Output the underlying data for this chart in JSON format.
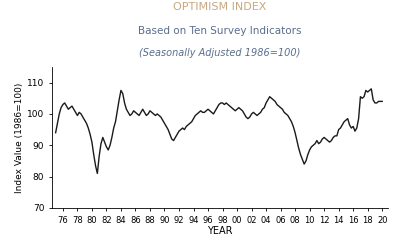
{
  "title1": "OPTIMISM INDEX",
  "title2": "Based on Ten Survey Indicators",
  "title3": "(Seasonally Adjusted 1986=100)",
  "title1_color": "#C8A882",
  "title2_color": "#5A6E8C",
  "title3_color": "#5A6E8C",
  "xlabel": "YEAR",
  "ylabel": "Index Value (1986=100)",
  "xlim": [
    1974.5,
    2020.8
  ],
  "ylim": [
    70,
    115
  ],
  "yticks": [
    70,
    80,
    90,
    100,
    110
  ],
  "xtick_vals": [
    1976,
    1978,
    1980,
    1982,
    1984,
    1986,
    1988,
    1990,
    1992,
    1994,
    1996,
    1998,
    2000,
    2002,
    2004,
    2006,
    2008,
    2010,
    2012,
    2014,
    2016,
    2018,
    2020
  ],
  "xtick_labels": [
    "76",
    "78",
    "80",
    "82",
    "84",
    "86",
    "88",
    "90",
    "92",
    "94",
    "96",
    "98",
    "00",
    "02",
    "04",
    "06",
    "08",
    "10",
    "12",
    "14",
    "16",
    "18",
    "20"
  ],
  "line_color": "#1a1a1a",
  "line_width": 1.0,
  "background_color": "#ffffff",
  "data": [
    [
      1975.0,
      94.0
    ],
    [
      1975.25,
      97.0
    ],
    [
      1975.5,
      100.0
    ],
    [
      1975.75,
      102.0
    ],
    [
      1976.0,
      103.0
    ],
    [
      1976.25,
      103.5
    ],
    [
      1976.5,
      102.5
    ],
    [
      1976.75,
      101.5
    ],
    [
      1977.0,
      102.0
    ],
    [
      1977.25,
      102.5
    ],
    [
      1977.5,
      101.5
    ],
    [
      1977.75,
      100.5
    ],
    [
      1978.0,
      99.5
    ],
    [
      1978.25,
      100.5
    ],
    [
      1978.5,
      100.0
    ],
    [
      1978.75,
      99.0
    ],
    [
      1979.0,
      98.0
    ],
    [
      1979.25,
      97.0
    ],
    [
      1979.5,
      95.5
    ],
    [
      1979.75,
      93.5
    ],
    [
      1980.0,
      91.0
    ],
    [
      1980.25,
      87.0
    ],
    [
      1980.5,
      83.5
    ],
    [
      1980.75,
      81.0
    ],
    [
      1981.0,
      86.5
    ],
    [
      1981.25,
      90.5
    ],
    [
      1981.5,
      92.5
    ],
    [
      1981.75,
      91.0
    ],
    [
      1982.0,
      89.5
    ],
    [
      1982.25,
      88.5
    ],
    [
      1982.5,
      90.0
    ],
    [
      1982.75,
      92.5
    ],
    [
      1983.0,
      95.5
    ],
    [
      1983.25,
      97.5
    ],
    [
      1983.5,
      101.0
    ],
    [
      1983.75,
      104.5
    ],
    [
      1984.0,
      107.5
    ],
    [
      1984.25,
      106.5
    ],
    [
      1984.5,
      103.5
    ],
    [
      1984.75,
      101.5
    ],
    [
      1985.0,
      100.5
    ],
    [
      1985.25,
      99.5
    ],
    [
      1985.5,
      100.0
    ],
    [
      1985.75,
      101.0
    ],
    [
      1986.0,
      100.5
    ],
    [
      1986.25,
      100.0
    ],
    [
      1986.5,
      99.5
    ],
    [
      1986.75,
      100.5
    ],
    [
      1987.0,
      101.5
    ],
    [
      1987.25,
      100.5
    ],
    [
      1987.5,
      99.5
    ],
    [
      1987.75,
      100.0
    ],
    [
      1988.0,
      101.0
    ],
    [
      1988.25,
      100.5
    ],
    [
      1988.5,
      100.0
    ],
    [
      1988.75,
      99.5
    ],
    [
      1989.0,
      100.0
    ],
    [
      1989.25,
      99.5
    ],
    [
      1989.5,
      99.0
    ],
    [
      1989.75,
      98.0
    ],
    [
      1990.0,
      97.0
    ],
    [
      1990.25,
      96.0
    ],
    [
      1990.5,
      95.0
    ],
    [
      1990.75,
      93.5
    ],
    [
      1991.0,
      92.0
    ],
    [
      1991.25,
      91.5
    ],
    [
      1991.5,
      92.5
    ],
    [
      1991.75,
      93.5
    ],
    [
      1992.0,
      94.5
    ],
    [
      1992.25,
      95.0
    ],
    [
      1992.5,
      95.5
    ],
    [
      1992.75,
      95.0
    ],
    [
      1993.0,
      96.0
    ],
    [
      1993.25,
      96.5
    ],
    [
      1993.5,
      97.0
    ],
    [
      1993.75,
      97.5
    ],
    [
      1994.0,
      98.5
    ],
    [
      1994.25,
      99.5
    ],
    [
      1994.5,
      100.0
    ],
    [
      1994.75,
      100.5
    ],
    [
      1995.0,
      101.0
    ],
    [
      1995.25,
      100.5
    ],
    [
      1995.5,
      100.5
    ],
    [
      1995.75,
      101.0
    ],
    [
      1996.0,
      101.5
    ],
    [
      1996.25,
      101.0
    ],
    [
      1996.5,
      100.5
    ],
    [
      1996.75,
      100.0
    ],
    [
      1997.0,
      101.0
    ],
    [
      1997.25,
      102.0
    ],
    [
      1997.5,
      103.0
    ],
    [
      1997.75,
      103.5
    ],
    [
      1998.0,
      103.5
    ],
    [
      1998.25,
      103.0
    ],
    [
      1998.5,
      103.5
    ],
    [
      1998.75,
      103.0
    ],
    [
      1999.0,
      102.5
    ],
    [
      1999.25,
      102.0
    ],
    [
      1999.5,
      101.5
    ],
    [
      1999.75,
      101.0
    ],
    [
      2000.0,
      101.5
    ],
    [
      2000.25,
      102.0
    ],
    [
      2000.5,
      101.5
    ],
    [
      2000.75,
      101.0
    ],
    [
      2001.0,
      100.0
    ],
    [
      2001.25,
      99.0
    ],
    [
      2001.5,
      98.5
    ],
    [
      2001.75,
      99.0
    ],
    [
      2002.0,
      100.0
    ],
    [
      2002.25,
      100.5
    ],
    [
      2002.5,
      100.0
    ],
    [
      2002.75,
      99.5
    ],
    [
      2003.0,
      100.0
    ],
    [
      2003.25,
      100.5
    ],
    [
      2003.5,
      101.5
    ],
    [
      2003.75,
      102.0
    ],
    [
      2004.0,
      103.5
    ],
    [
      2004.25,
      104.5
    ],
    [
      2004.5,
      105.5
    ],
    [
      2004.75,
      105.0
    ],
    [
      2005.0,
      104.5
    ],
    [
      2005.25,
      104.0
    ],
    [
      2005.5,
      103.0
    ],
    [
      2005.75,
      102.5
    ],
    [
      2006.0,
      102.0
    ],
    [
      2006.25,
      101.5
    ],
    [
      2006.5,
      100.5
    ],
    [
      2006.75,
      100.0
    ],
    [
      2007.0,
      99.5
    ],
    [
      2007.25,
      98.5
    ],
    [
      2007.5,
      97.5
    ],
    [
      2007.75,
      96.0
    ],
    [
      2008.0,
      94.0
    ],
    [
      2008.25,
      91.5
    ],
    [
      2008.5,
      89.0
    ],
    [
      2008.75,
      87.0
    ],
    [
      2009.0,
      85.5
    ],
    [
      2009.25,
      84.0
    ],
    [
      2009.5,
      85.0
    ],
    [
      2009.75,
      87.0
    ],
    [
      2010.0,
      88.5
    ],
    [
      2010.25,
      89.5
    ],
    [
      2010.5,
      90.0
    ],
    [
      2010.75,
      90.5
    ],
    [
      2011.0,
      91.5
    ],
    [
      2011.25,
      90.5
    ],
    [
      2011.5,
      91.0
    ],
    [
      2011.75,
      92.0
    ],
    [
      2012.0,
      92.5
    ],
    [
      2012.25,
      92.0
    ],
    [
      2012.5,
      91.5
    ],
    [
      2012.75,
      91.0
    ],
    [
      2013.0,
      91.5
    ],
    [
      2013.25,
      92.5
    ],
    [
      2013.5,
      93.0
    ],
    [
      2013.75,
      93.0
    ],
    [
      2014.0,
      95.0
    ],
    [
      2014.25,
      95.5
    ],
    [
      2014.5,
      96.5
    ],
    [
      2014.75,
      97.5
    ],
    [
      2015.0,
      98.0
    ],
    [
      2015.25,
      98.5
    ],
    [
      2015.5,
      96.5
    ],
    [
      2015.75,
      95.5
    ],
    [
      2016.0,
      96.0
    ],
    [
      2016.25,
      94.5
    ],
    [
      2016.5,
      95.5
    ],
    [
      2016.75,
      98.5
    ],
    [
      2017.0,
      105.5
    ],
    [
      2017.25,
      105.0
    ],
    [
      2017.5,
      105.5
    ],
    [
      2017.75,
      107.5
    ],
    [
      2018.0,
      107.0
    ],
    [
      2018.25,
      107.5
    ],
    [
      2018.5,
      108.0
    ],
    [
      2018.75,
      104.5
    ],
    [
      2019.0,
      103.5
    ],
    [
      2019.25,
      103.5
    ],
    [
      2019.5,
      104.0
    ],
    [
      2019.75,
      104.0
    ],
    [
      2020.0,
      104.0
    ]
  ]
}
